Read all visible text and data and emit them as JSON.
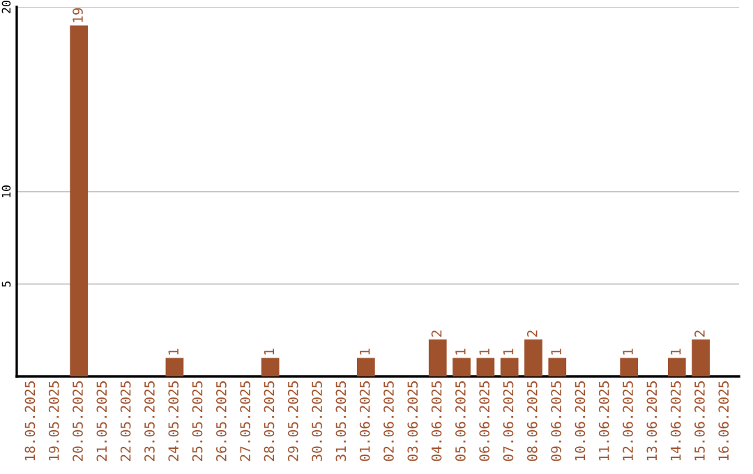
{
  "chart_data": {
    "type": "bar",
    "categories": [
      "18.05.2025",
      "19.05.2025",
      "20.05.2025",
      "21.05.2025",
      "22.05.2025",
      "23.05.2025",
      "24.05.2025",
      "25.05.2025",
      "26.05.2025",
      "27.05.2025",
      "28.05.2025",
      "29.05.2025",
      "30.05.2025",
      "31.05.2025",
      "01.06.2025",
      "02.06.2025",
      "03.06.2025",
      "04.06.2025",
      "05.06.2025",
      "06.06.2025",
      "07.06.2025",
      "08.06.2025",
      "09.06.2025",
      "10.06.2025",
      "11.06.2025",
      "12.06.2025",
      "13.06.2025",
      "14.06.2025",
      "15.06.2025",
      "16.06.2025"
    ],
    "values": [
      0,
      0,
      19,
      0,
      0,
      0,
      1,
      0,
      0,
      0,
      1,
      0,
      0,
      0,
      1,
      0,
      0,
      2,
      1,
      1,
      1,
      2,
      1,
      0,
      0,
      1,
      0,
      1,
      2,
      0
    ],
    "value_labels": [
      null,
      null,
      "19",
      null,
      null,
      null,
      "1",
      null,
      null,
      null,
      "1",
      null,
      null,
      null,
      "1",
      null,
      null,
      "2",
      "1",
      "1",
      "1",
      "2",
      "1",
      null,
      null,
      "1",
      null,
      "1",
      "2",
      null
    ],
    "color": "#a0522d",
    "ylim": [
      0,
      20
    ],
    "yticks": [
      5,
      10,
      20
    ],
    "grid": "y"
  }
}
